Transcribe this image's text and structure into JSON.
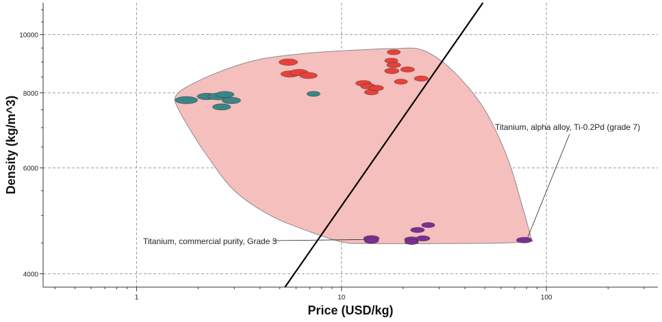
{
  "chart_data": {
    "type": "scatter",
    "xlabel": "Price (USD/kg)",
    "ylabel": "Density (kg/m^3)",
    "x_scale": "log",
    "y_scale": "log",
    "xlim": [
      0.35,
      350
    ],
    "ylim": [
      3800,
      11300
    ],
    "x_ticks": [
      "1",
      "10",
      "100"
    ],
    "y_ticks": [
      "4000",
      "6000",
      "8000",
      "10000"
    ],
    "grid": true,
    "colors": {
      "envelope": "#f4bfbd",
      "envelope_stroke": "#8a8a8a",
      "teal": "#3a8585",
      "red": "#e8413a",
      "purple": "#7a2f93",
      "line": "#000000"
    },
    "series": [
      {
        "color": "#3a8585",
        "points": [
          {
            "x": 1.75,
            "y": 7780,
            "w": 1.15
          },
          {
            "x": 2.2,
            "y": 7890,
            "w": 0.9
          },
          {
            "x": 2.5,
            "y": 7890,
            "w": 1.0
          },
          {
            "x": 2.7,
            "y": 7950,
            "w": 0.8
          },
          {
            "x": 2.9,
            "y": 7770,
            "w": 0.85
          },
          {
            "x": 2.6,
            "y": 7580,
            "w": 0.8
          },
          {
            "x": 7.3,
            "y": 7970,
            "w": 0.4
          }
        ]
      },
      {
        "color": "#e8413a",
        "points": [
          {
            "x": 5.5,
            "y": 9000,
            "w": 0.85
          },
          {
            "x": 5.6,
            "y": 8600,
            "w": 0.8
          },
          {
            "x": 6.2,
            "y": 8650,
            "w": 0.8
          },
          {
            "x": 6.9,
            "y": 8550,
            "w": 0.75
          },
          {
            "x": 12.8,
            "y": 8300,
            "w": 0.6
          },
          {
            "x": 13.5,
            "y": 8200,
            "w": 0.55
          },
          {
            "x": 14.0,
            "y": 8020,
            "w": 0.45
          },
          {
            "x": 14.8,
            "y": 8150,
            "w": 0.5
          },
          {
            "x": 18.0,
            "y": 9350,
            "w": 0.4
          },
          {
            "x": 17.5,
            "y": 9050,
            "w": 0.4
          },
          {
            "x": 18.0,
            "y": 8900,
            "w": 0.45
          },
          {
            "x": 17.6,
            "y": 8700,
            "w": 0.5
          },
          {
            "x": 21.0,
            "y": 8750,
            "w": 0.45
          },
          {
            "x": 19.5,
            "y": 8350,
            "w": 0.4
          },
          {
            "x": 24.5,
            "y": 8450,
            "w": 0.45
          }
        ]
      },
      {
        "color": "#7a2f93",
        "points": [
          {
            "x": 14.0,
            "y": 4580,
            "w": 0.6
          },
          {
            "x": 14.0,
            "y": 4540,
            "w": 0.5
          },
          {
            "x": 22.0,
            "y": 4560,
            "w": 0.5
          },
          {
            "x": 22.0,
            "y": 4520,
            "w": 0.45
          },
          {
            "x": 23.5,
            "y": 4730,
            "w": 0.45
          },
          {
            "x": 25.0,
            "y": 4580,
            "w": 0.45
          },
          {
            "x": 26.5,
            "y": 4820,
            "w": 0.4
          },
          {
            "x": 78.0,
            "y": 4550,
            "w": 0.6
          }
        ]
      }
    ],
    "envelope": [
      [
        1.6,
        8000
      ],
      [
        1.9,
        8300
      ],
      [
        2.6,
        8700
      ],
      [
        4.0,
        9100
      ],
      [
        7.0,
        9320
      ],
      [
        12.0,
        9430
      ],
      [
        18.0,
        9480
      ],
      [
        25.0,
        9420
      ],
      [
        35.0,
        8700
      ],
      [
        50.0,
        7500
      ],
      [
        65.0,
        6200
      ],
      [
        76.0,
        5200
      ],
      [
        84.0,
        4600
      ],
      [
        83.0,
        4530
      ],
      [
        60.0,
        4500
      ],
      [
        30.0,
        4490
      ],
      [
        13.0,
        4490
      ],
      [
        10.0,
        4520
      ],
      [
        7.0,
        4700
      ],
      [
        4.5,
        5000
      ],
      [
        3.0,
        5500
      ],
      [
        2.2,
        6300
      ],
      [
        1.8,
        7000
      ],
      [
        1.55,
        7700
      ]
    ],
    "trend_line": {
      "from": {
        "x": 5.3,
        "y": 3800
      },
      "to": {
        "x": 49.0,
        "y": 11300
      }
    },
    "annotations": [
      {
        "text": "Titanium, commercial purity, Grade 3",
        "x": 14.0,
        "y": 4560
      },
      {
        "text": "Titanium, alpha alloy, Ti-0.2Pd (grade 7)",
        "x": 78.0,
        "y": 4550
      }
    ]
  }
}
